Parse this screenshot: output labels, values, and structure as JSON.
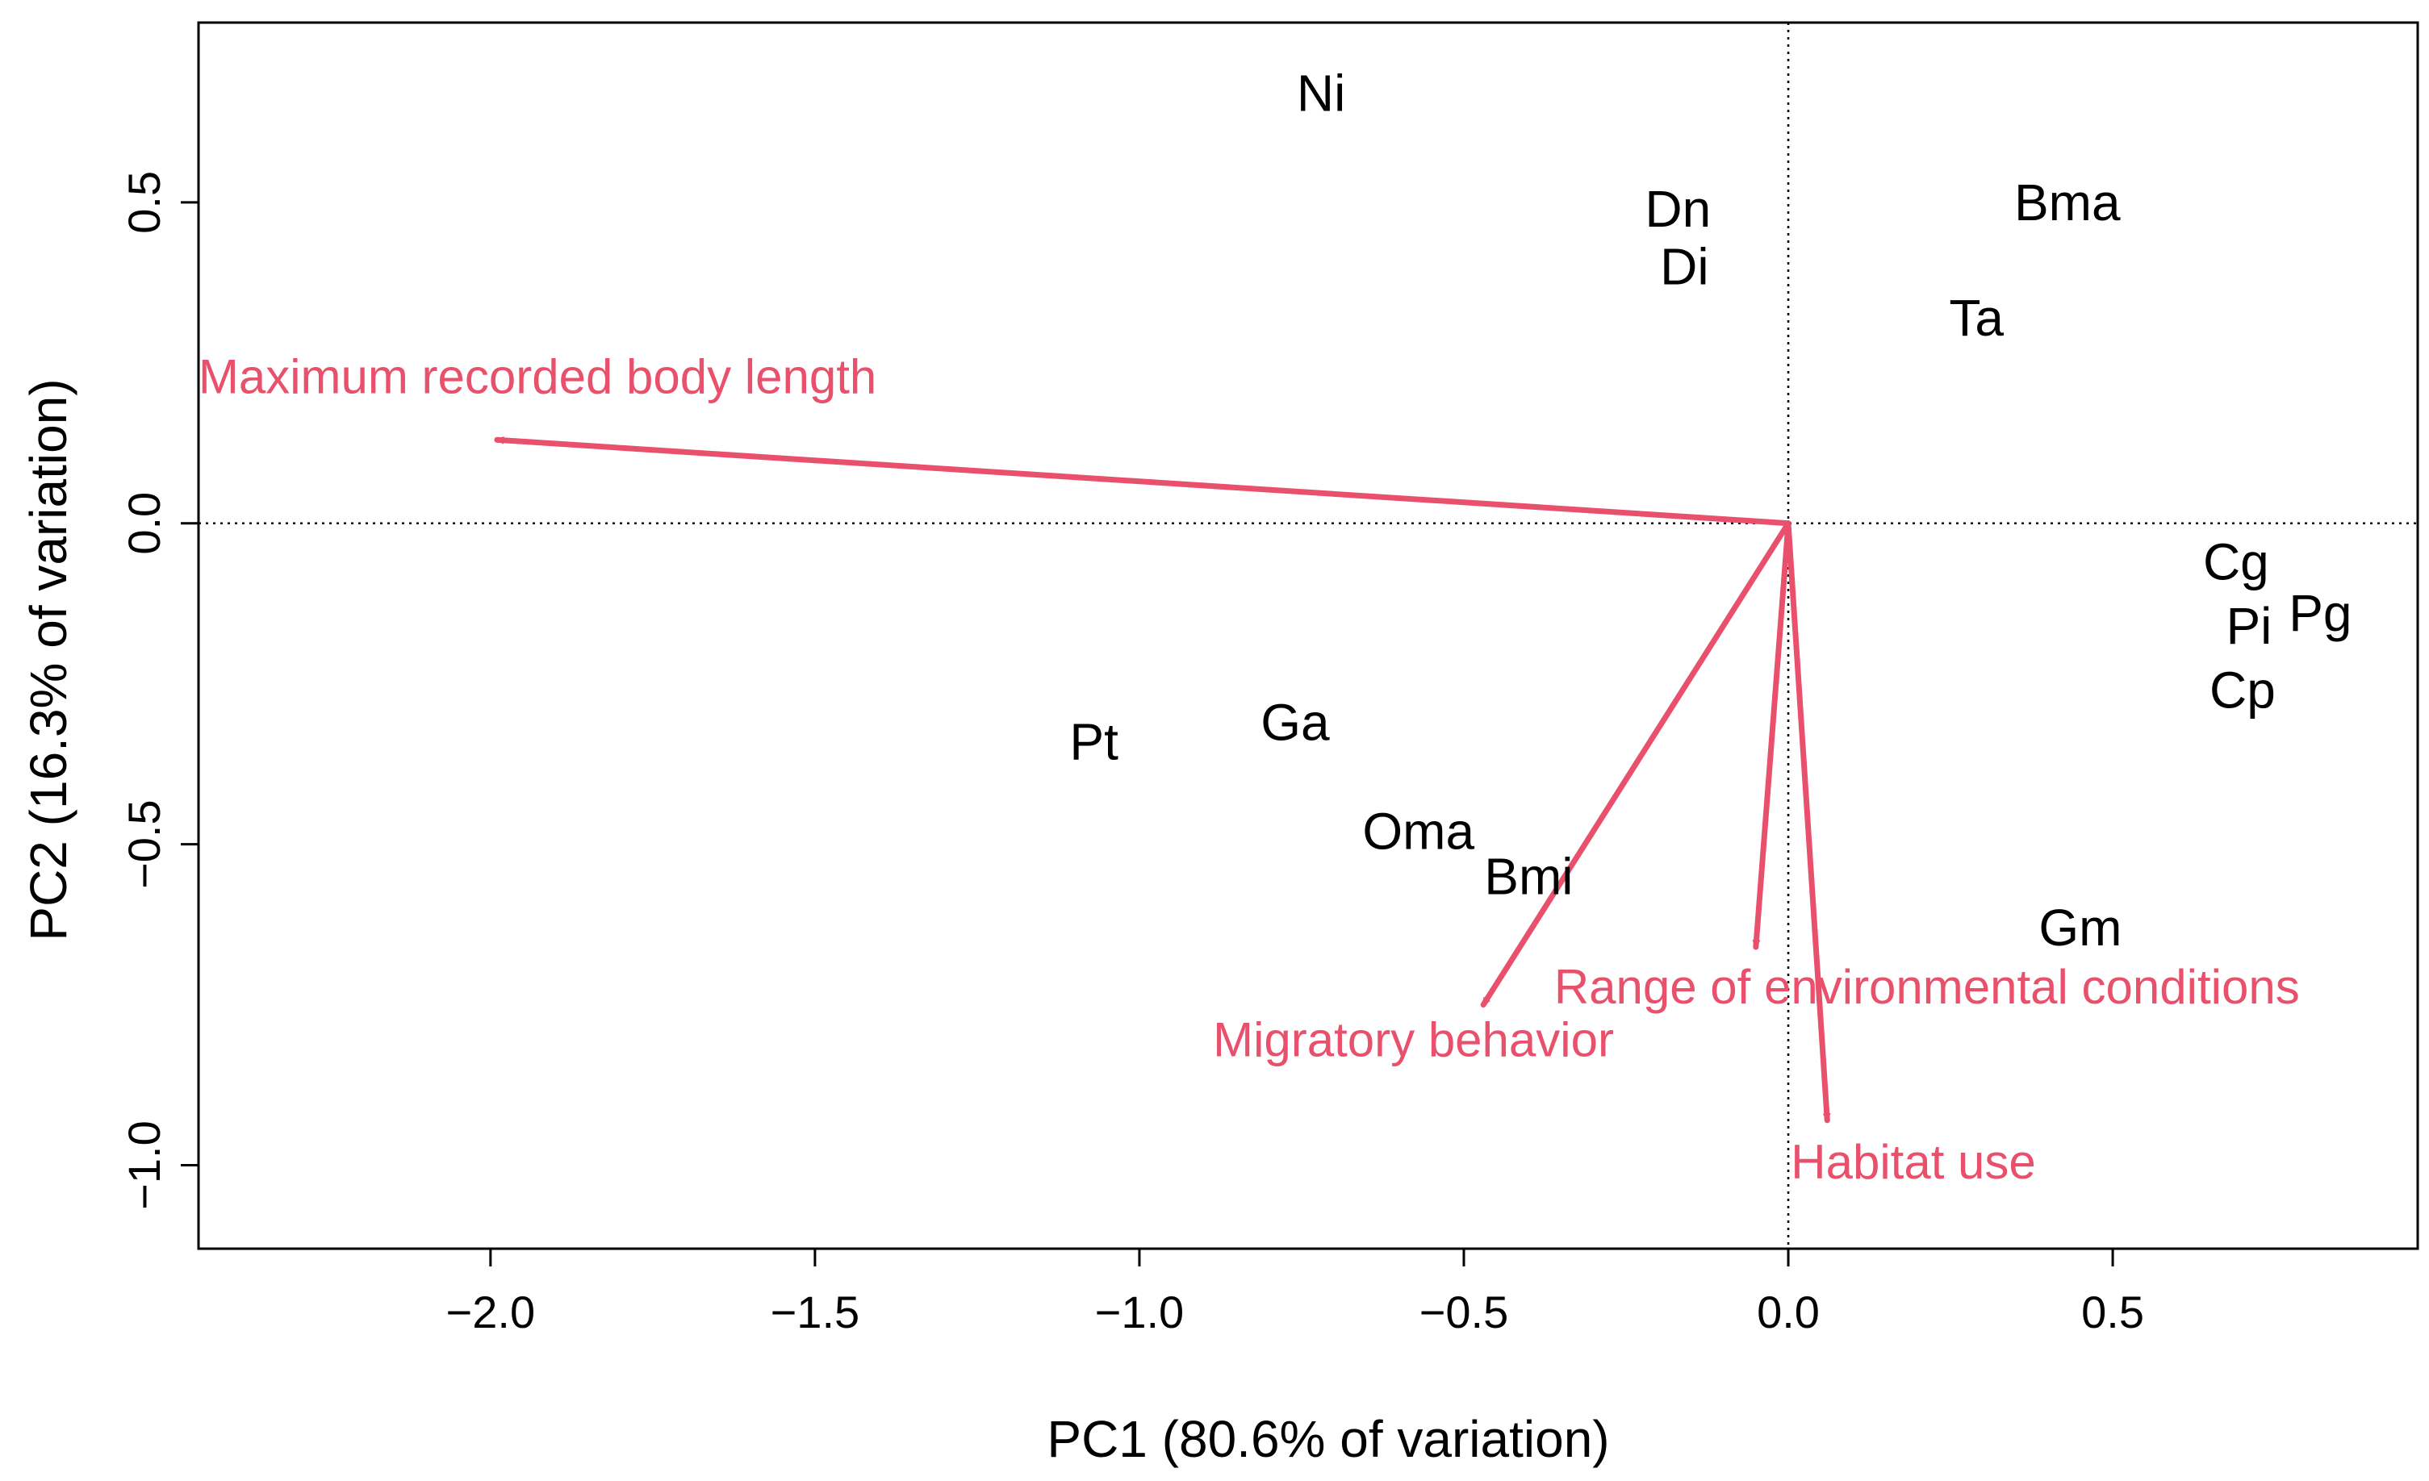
{
  "chart_data": {
    "type": "scatter",
    "title": "",
    "xlabel": "PC1 (80.6% of variation)",
    "ylabel": "PC2 (16.3% of variation)",
    "xlim": [
      -2.45,
      0.97
    ],
    "ylim": [
      -1.13,
      0.78
    ],
    "x_ticks": [
      -2.0,
      -1.5,
      -1.0,
      -0.5,
      0.0,
      0.5
    ],
    "x_tick_labels": [
      "−2.0",
      "−1.5",
      "−1.0",
      "−0.5",
      "0.0",
      "0.5"
    ],
    "y_ticks": [
      0.5,
      0.0,
      -0.5,
      -1.0
    ],
    "y_tick_labels": [
      "0.5",
      "0.0",
      "−0.5",
      "−1.0"
    ],
    "grid": false,
    "reference_lines": {
      "x": 0,
      "y": 0,
      "style": "dotted"
    },
    "points": [
      {
        "label": "Ni",
        "x": -0.72,
        "y": 0.67
      },
      {
        "label": "Dn",
        "x": -0.17,
        "y": 0.49
      },
      {
        "label": "Di",
        "x": -0.16,
        "y": 0.4
      },
      {
        "label": "Bma",
        "x": 0.43,
        "y": 0.5
      },
      {
        "label": "Ta",
        "x": 0.29,
        "y": 0.32
      },
      {
        "label": "Cg",
        "x": 0.69,
        "y": -0.06
      },
      {
        "label": "Pg",
        "x": 0.82,
        "y": -0.14
      },
      {
        "label": "Pi",
        "x": 0.71,
        "y": -0.16
      },
      {
        "label": "Cp",
        "x": 0.7,
        "y": -0.26
      },
      {
        "label": "Pt",
        "x": -1.07,
        "y": -0.34
      },
      {
        "label": "Ga",
        "x": -0.76,
        "y": -0.31
      },
      {
        "label": "Oma",
        "x": -0.57,
        "y": -0.48
      },
      {
        "label": "Bmi",
        "x": -0.4,
        "y": -0.55
      },
      {
        "label": "Gm",
        "x": 0.45,
        "y": -0.63
      }
    ],
    "loadings": [
      {
        "label": "Maximum recorded body length",
        "x": -1.99,
        "y": 0.13
      },
      {
        "label": "Migratory behavior",
        "x": -0.47,
        "y": -0.75
      },
      {
        "label": "Range of environmental conditions",
        "x": -0.05,
        "y": -0.66
      },
      {
        "label": "Habitat use",
        "x": 0.06,
        "y": -0.93
      }
    ],
    "colors": {
      "points": "#000000",
      "loadings": "#E8506B"
    }
  }
}
